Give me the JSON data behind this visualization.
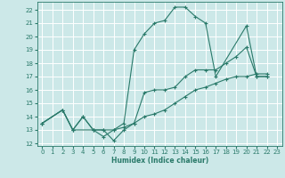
{
  "xlabel": "Humidex (Indice chaleur)",
  "bg_color": "#cce8e8",
  "grid_color": "#ffffff",
  "line_color": "#2a7a6a",
  "xlim": [
    -0.5,
    23.5
  ],
  "ylim": [
    11.8,
    22.6
  ],
  "xticks": [
    0,
    1,
    2,
    3,
    4,
    5,
    6,
    7,
    8,
    9,
    10,
    11,
    12,
    13,
    14,
    15,
    16,
    17,
    18,
    19,
    20,
    21,
    22,
    23
  ],
  "yticks": [
    12,
    13,
    14,
    15,
    16,
    17,
    18,
    19,
    20,
    21,
    22
  ],
  "curve1_x": [
    0,
    2,
    3,
    4,
    5,
    6,
    7,
    8,
    9,
    10,
    11,
    12,
    13,
    14,
    15,
    16,
    17,
    20,
    21,
    22
  ],
  "curve1_y": [
    13.5,
    14.5,
    13.0,
    14.0,
    13.0,
    12.5,
    13.0,
    13.5,
    19.0,
    20.2,
    21.0,
    21.2,
    22.2,
    22.2,
    21.5,
    21.0,
    17.0,
    20.8,
    17.0,
    17.0
  ],
  "curve2_x": [
    0,
    2,
    3,
    4,
    5,
    6,
    7,
    8,
    9,
    10,
    11,
    12,
    13,
    14,
    15,
    16,
    17,
    18,
    19,
    20,
    21,
    22
  ],
  "curve2_y": [
    13.5,
    14.5,
    13.0,
    14.0,
    13.0,
    13.0,
    12.2,
    13.0,
    13.5,
    15.8,
    16.0,
    16.0,
    16.2,
    17.0,
    17.5,
    17.5,
    17.5,
    18.0,
    18.5,
    19.2,
    17.0,
    17.0
  ],
  "curve3_x": [
    0,
    2,
    3,
    5,
    6,
    7,
    8,
    9,
    10,
    11,
    12,
    13,
    14,
    15,
    16,
    17,
    18,
    19,
    20,
    21,
    22
  ],
  "curve3_y": [
    13.5,
    14.5,
    13.0,
    13.0,
    13.0,
    13.0,
    13.2,
    13.5,
    14.0,
    14.2,
    14.5,
    15.0,
    15.5,
    16.0,
    16.2,
    16.5,
    16.8,
    17.0,
    17.0,
    17.2,
    17.2
  ]
}
